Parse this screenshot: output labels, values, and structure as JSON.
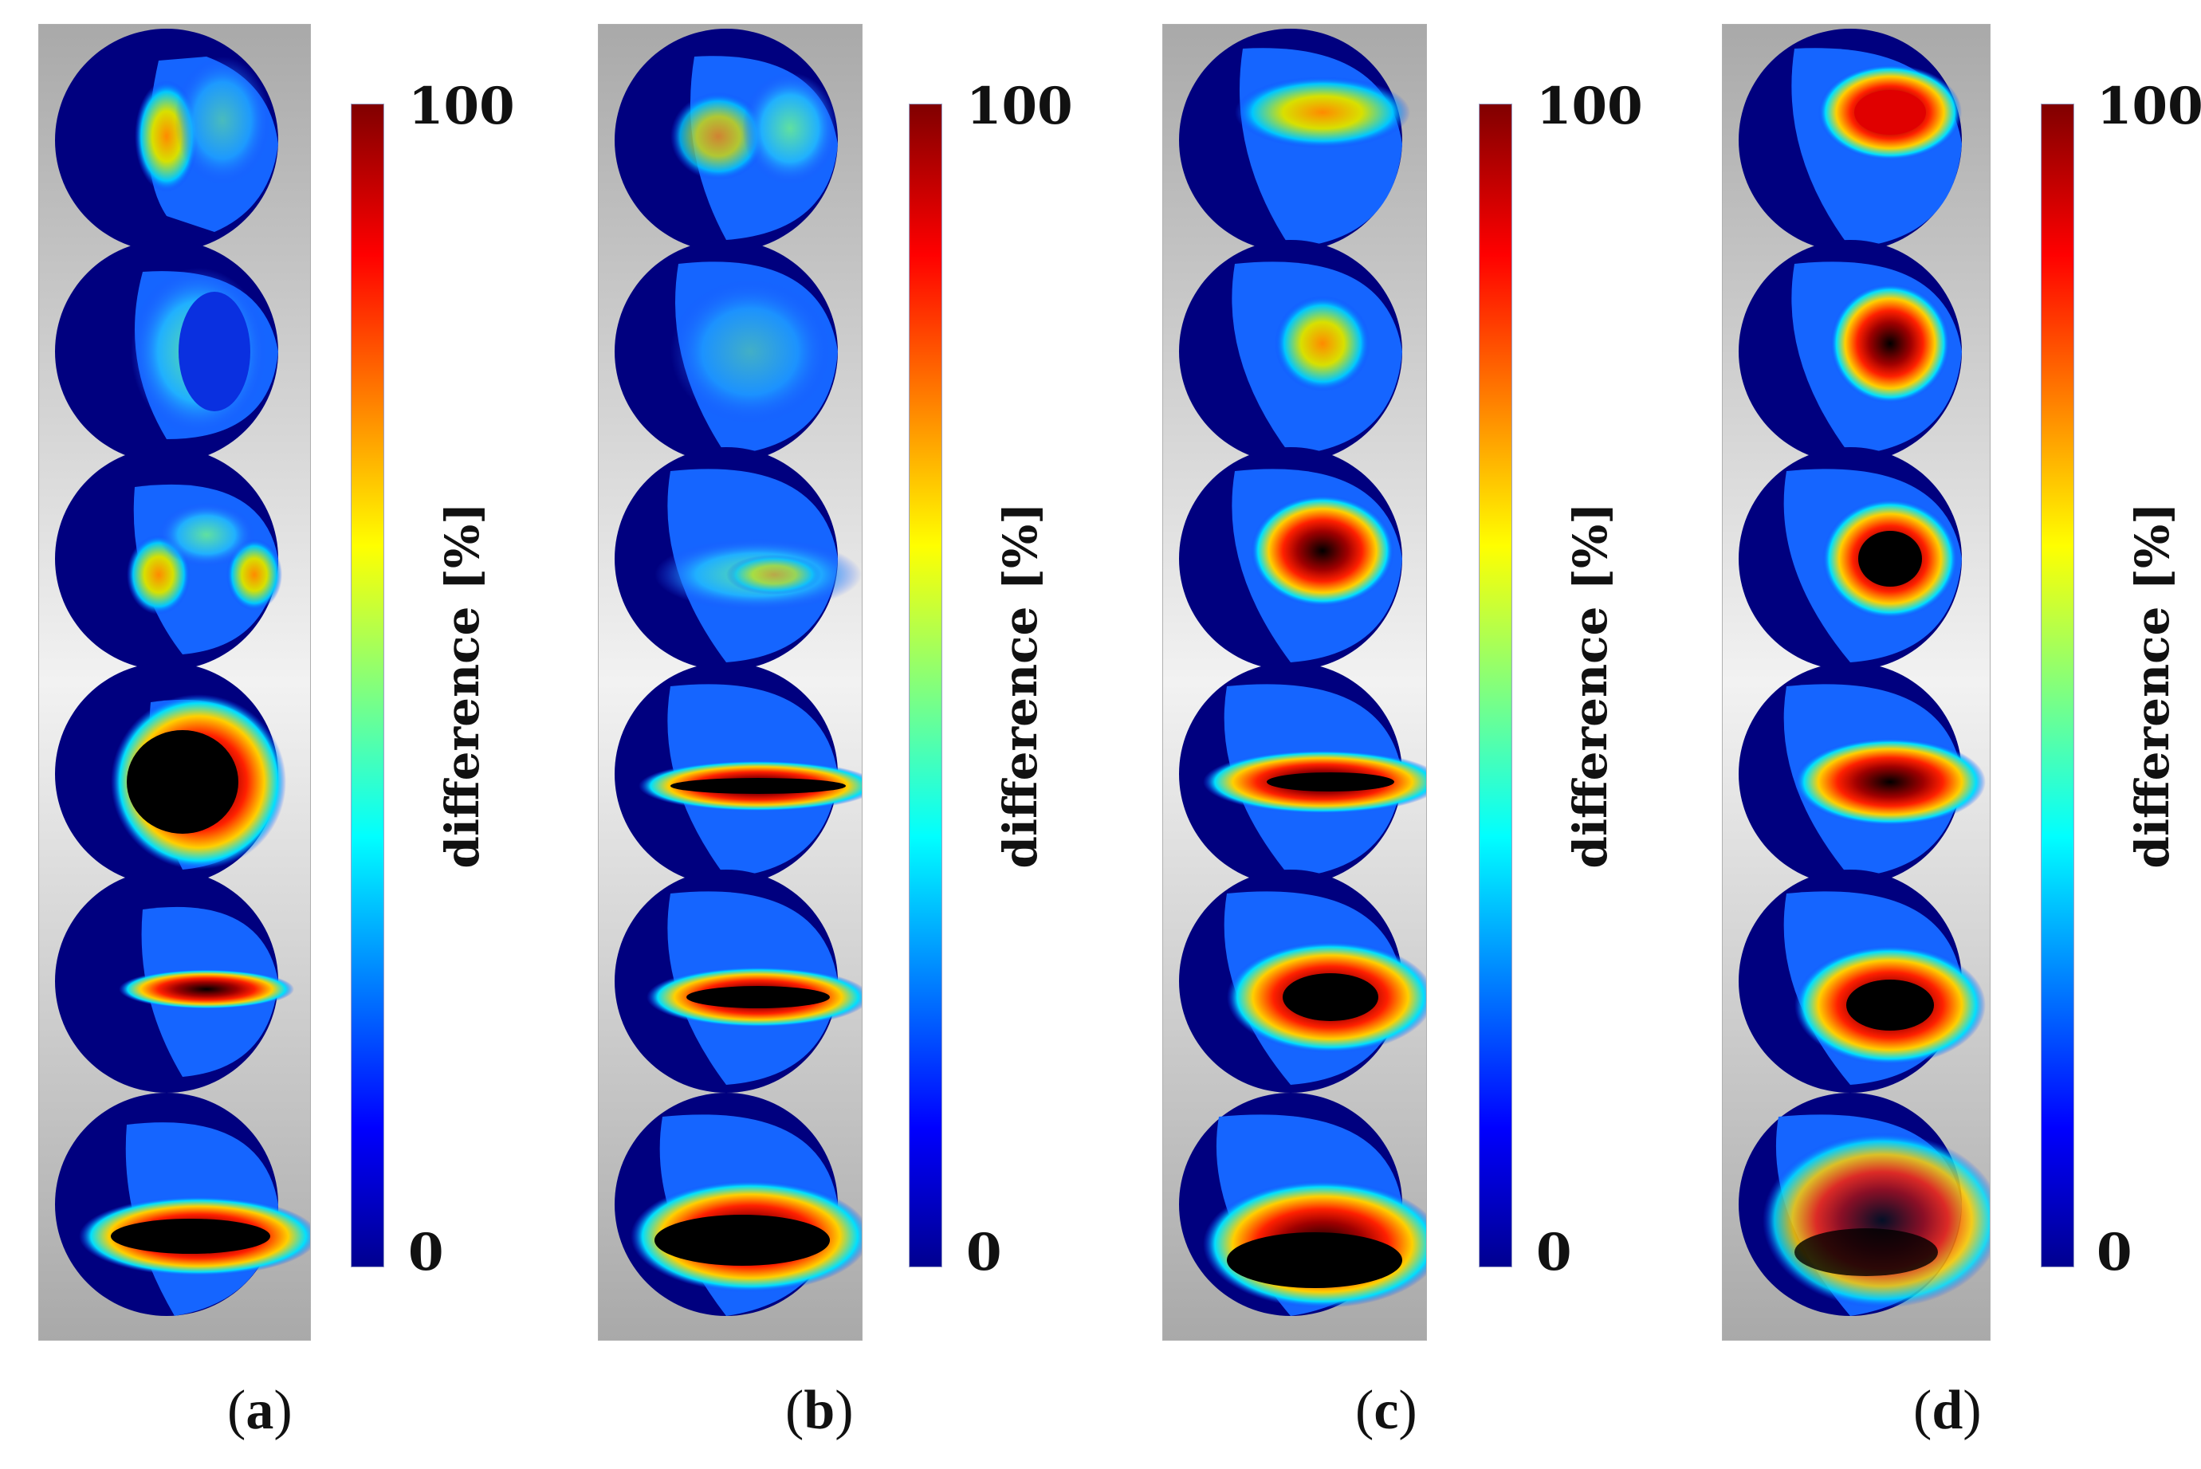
{
  "figure": {
    "colorbar": {
      "max_label": "100",
      "min_label": "0",
      "axis_label": "difference [%]",
      "range": [
        0,
        100
      ],
      "colormap": [
        "#00008f",
        "#0000ff",
        "#00ffff",
        "#ffff00",
        "#ff0000",
        "#800000"
      ]
    },
    "panels": [
      {
        "letter": "a",
        "sphere_count": 6
      },
      {
        "letter": "b",
        "sphere_count": 6
      },
      {
        "letter": "c",
        "sphere_count": 6
      },
      {
        "letter": "d",
        "sphere_count": 6
      }
    ],
    "label_open": "(",
    "label_close": ")"
  }
}
